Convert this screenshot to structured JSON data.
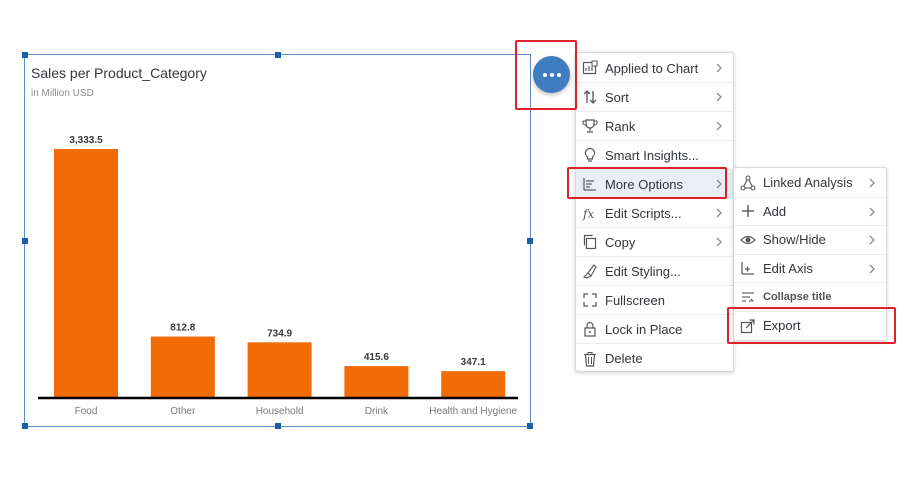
{
  "chart": {
    "title": "Sales per Product_Category",
    "subtitle": "in Million USD"
  },
  "chart_data": {
    "type": "bar",
    "title": "Sales per Product_Category",
    "subtitle": "in Million USD",
    "categories": [
      "Food",
      "Other",
      "Household",
      "Drink",
      "Health and Hygiene"
    ],
    "values": [
      3333.5,
      812.8,
      734.9,
      415.6,
      347.1
    ],
    "data_labels": [
      "3,333.5",
      "812.8",
      "734.9",
      "415.6",
      "347.1"
    ],
    "ylim": [
      0,
      3333.5
    ],
    "grid": false,
    "legend": "none",
    "bar_color": "#f26b04"
  },
  "colors": {
    "accent": "#3f7dc0",
    "bar": "#f26b04",
    "annotation": "#e0202a",
    "highlight": "#e8eff7"
  },
  "menu": {
    "items": [
      {
        "label": "Applied to Chart",
        "icon": "chart-filter-icon",
        "submenu": true
      },
      {
        "label": "Sort",
        "icon": "sort-icon",
        "submenu": true
      },
      {
        "label": "Rank",
        "icon": "trophy-icon",
        "submenu": true
      },
      {
        "label": "Smart Insights...",
        "icon": "lightbulb-icon",
        "submenu": false
      },
      {
        "label": "More Options",
        "icon": "more-options-icon",
        "submenu": true
      },
      {
        "label": "Edit Scripts...",
        "icon": "fx-icon",
        "submenu": true
      },
      {
        "label": "Copy",
        "icon": "copy-icon",
        "submenu": true
      },
      {
        "label": "Edit Styling...",
        "icon": "paint-icon",
        "submenu": false
      },
      {
        "label": "Fullscreen",
        "icon": "fullscreen-icon",
        "submenu": false
      },
      {
        "label": "Lock in Place",
        "icon": "lock-icon",
        "submenu": false
      },
      {
        "label": "Delete",
        "icon": "trash-icon",
        "submenu": false
      }
    ]
  },
  "submenu": {
    "items": [
      {
        "label": "Linked Analysis",
        "icon": "linked-analysis-icon",
        "submenu": true
      },
      {
        "label": "Add",
        "icon": "plus-icon",
        "submenu": true
      },
      {
        "label": "Show/Hide",
        "icon": "eye-icon",
        "submenu": true
      },
      {
        "label": "Edit Axis",
        "icon": "axis-icon",
        "submenu": true
      },
      {
        "label": "Collapse title",
        "icon": "collapse-title-icon",
        "submenu": false
      },
      {
        "label": "Export",
        "icon": "export-icon",
        "submenu": false
      }
    ]
  }
}
